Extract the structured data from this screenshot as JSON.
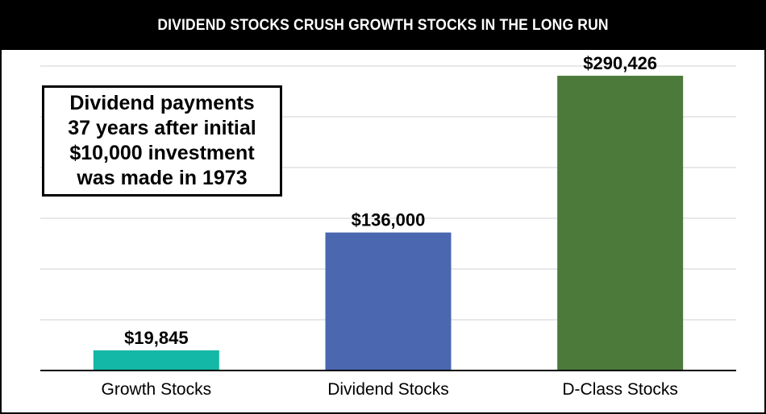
{
  "chart_data": {
    "type": "bar",
    "title": "DIVIDEND STOCKS CRUSH GROWTH STOCKS IN THE LONG RUN",
    "categories": [
      "Growth Stocks",
      "Dividend Stocks",
      "D-Class Stocks"
    ],
    "values": [
      19845,
      136000,
      290426
    ],
    "value_labels": [
      "$19,845",
      "$136,000",
      "$290,426"
    ],
    "colors": [
      "#14b8a6",
      "#4a67b0",
      "#4b7a3a"
    ],
    "xlabel": "",
    "ylabel": "",
    "ylim": [
      0,
      300000
    ],
    "gridlines": [
      50000,
      100000,
      150000,
      200000,
      250000,
      300000
    ],
    "grid": true,
    "legend": "none"
  },
  "annotation": {
    "lines": [
      "Dividend payments",
      "37 years after initial",
      "$10,000 investment",
      "was made in 1973"
    ]
  },
  "colors": {
    "title_background": "#000000",
    "title_text": "#ffffff",
    "gridline": "#d9d9d9",
    "axis": "#000000"
  }
}
